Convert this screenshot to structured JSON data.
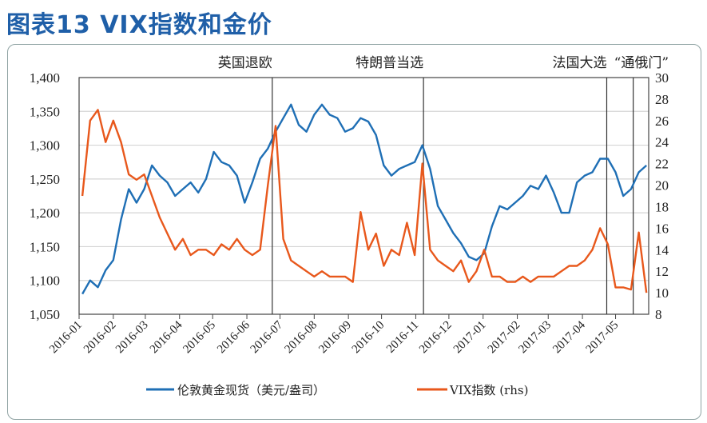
{
  "title": "图表13  VIX指数和金价",
  "chart_data": {
    "type": "line",
    "title": "图表13  VIX指数和金价",
    "x_tick_labels": [
      "2016-01",
      "2016-02",
      "2016-03",
      "2016-04",
      "2016-05",
      "2016-06",
      "2016-07",
      "2016-08",
      "2016-09",
      "2016-10",
      "2016-11",
      "2016-12",
      "2017-01",
      "2017-02",
      "2017-03",
      "2017-04",
      "2017-05"
    ],
    "left_axis": {
      "ylim": [
        1050,
        1400
      ],
      "ticks": [
        "1,050",
        "1,100",
        "1,150",
        "1,200",
        "1,250",
        "1,300",
        "1,350",
        "1,400"
      ]
    },
    "right_axis": {
      "ylim": [
        8,
        30
      ],
      "ticks": [
        "8",
        "10",
        "12",
        "14",
        "16",
        "18",
        "20",
        "22",
        "24",
        "26",
        "28",
        "30"
      ]
    },
    "grid": true,
    "legend_position": "bottom",
    "events": [
      {
        "label": "英国退欧",
        "date": "2016-06-24"
      },
      {
        "label": "特朗普当选",
        "date": "2016-11-08"
      },
      {
        "label": "法国大选",
        "date": "2017-04-23"
      },
      {
        "label": "“通俄门”",
        "date": "2017-05-17"
      }
    ],
    "dates": [
      "2016-01-04",
      "2016-01-11",
      "2016-01-18",
      "2016-01-25",
      "2016-02-01",
      "2016-02-08",
      "2016-02-15",
      "2016-02-22",
      "2016-02-29",
      "2016-03-07",
      "2016-03-14",
      "2016-03-21",
      "2016-03-28",
      "2016-04-04",
      "2016-04-11",
      "2016-04-18",
      "2016-04-25",
      "2016-05-02",
      "2016-05-09",
      "2016-05-16",
      "2016-05-23",
      "2016-05-30",
      "2016-06-06",
      "2016-06-13",
      "2016-06-20",
      "2016-06-27",
      "2016-07-04",
      "2016-07-11",
      "2016-07-18",
      "2016-07-25",
      "2016-08-01",
      "2016-08-08",
      "2016-08-15",
      "2016-08-22",
      "2016-08-29",
      "2016-09-05",
      "2016-09-12",
      "2016-09-19",
      "2016-09-26",
      "2016-10-03",
      "2016-10-10",
      "2016-10-17",
      "2016-10-24",
      "2016-10-31",
      "2016-11-07",
      "2016-11-14",
      "2016-11-21",
      "2016-11-28",
      "2016-12-05",
      "2016-12-12",
      "2016-12-19",
      "2016-12-26",
      "2017-01-02",
      "2017-01-09",
      "2017-01-16",
      "2017-01-23",
      "2017-01-30",
      "2017-02-06",
      "2017-02-13",
      "2017-02-20",
      "2017-02-27",
      "2017-03-06",
      "2017-03-13",
      "2017-03-20",
      "2017-03-27",
      "2017-04-03",
      "2017-04-10",
      "2017-04-17",
      "2017-04-24",
      "2017-05-01",
      "2017-05-08",
      "2017-05-15",
      "2017-05-22",
      "2017-05-29"
    ],
    "series": [
      {
        "name": "伦敦黄金现货（美元/盎司）",
        "axis": "left",
        "color": "#1f6fb5",
        "values": [
          1080,
          1100,
          1090,
          1115,
          1130,
          1190,
          1235,
          1215,
          1235,
          1270,
          1255,
          1245,
          1225,
          1235,
          1245,
          1230,
          1250,
          1290,
          1275,
          1270,
          1255,
          1215,
          1245,
          1280,
          1295,
          1320,
          1340,
          1360,
          1330,
          1320,
          1345,
          1360,
          1345,
          1340,
          1320,
          1325,
          1340,
          1335,
          1315,
          1270,
          1255,
          1265,
          1270,
          1275,
          1300,
          1265,
          1210,
          1190,
          1170,
          1155,
          1135,
          1130,
          1140,
          1180,
          1210,
          1205,
          1215,
          1225,
          1240,
          1235,
          1255,
          1230,
          1200,
          1200,
          1245,
          1255,
          1260,
          1280,
          1280,
          1260,
          1225,
          1235,
          1260,
          1270
        ]
      },
      {
        "name": "VIX指数 (rhs)",
        "axis": "right",
        "color": "#e8581c",
        "values": [
          19,
          26,
          27,
          24,
          26,
          24,
          21,
          20.5,
          21,
          19,
          17,
          15.5,
          14,
          15,
          13.5,
          14,
          14,
          13.5,
          14.5,
          14,
          15,
          14,
          13.5,
          14,
          20,
          25.5,
          15,
          13,
          12.5,
          12,
          11.5,
          12,
          11.5,
          11.5,
          11.5,
          11,
          17.5,
          14,
          15.5,
          12.5,
          14,
          13.5,
          16.5,
          13.5,
          22,
          14,
          13,
          12.5,
          12,
          13,
          11,
          12,
          14,
          11.5,
          11.5,
          11,
          11,
          11.5,
          11,
          11.5,
          11.5,
          11.5,
          12,
          12.5,
          12.5,
          13,
          14,
          16,
          14.5,
          10.5,
          10.5,
          10.3,
          15.6,
          10
        ]
      }
    ]
  }
}
